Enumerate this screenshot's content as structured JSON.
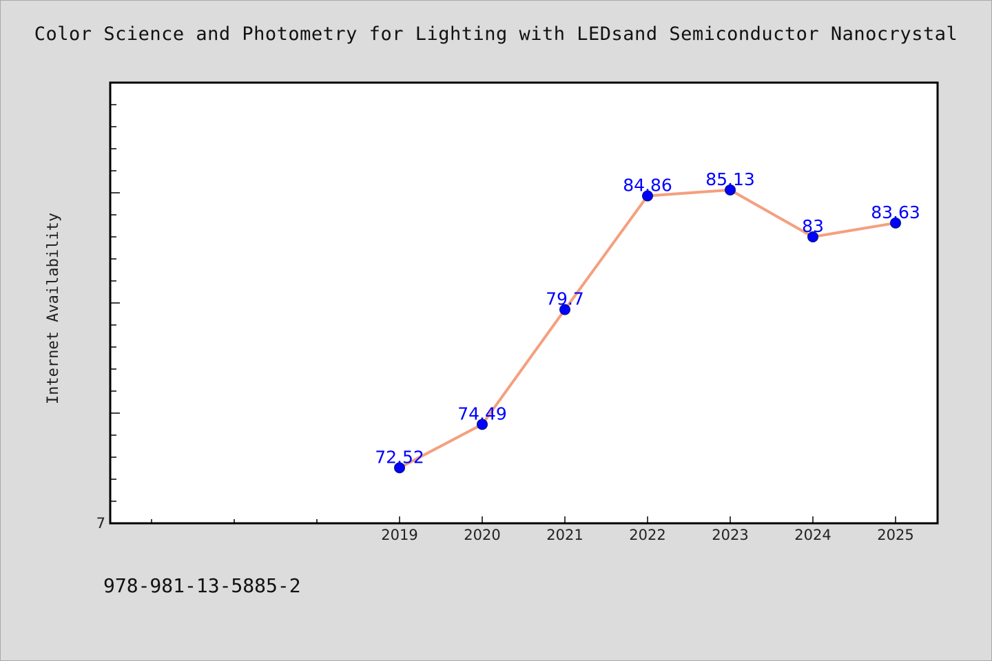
{
  "title": "Color Science and Photometry for Lighting with LEDsand Semiconductor Nanocrystal",
  "footer_text": "978-981-13-5885-2",
  "chart_data": {
    "type": "line",
    "categories": [
      "2019",
      "2020",
      "2021",
      "2022",
      "2023",
      "2024",
      "2025"
    ],
    "values": [
      72.52,
      74.49,
      79.7,
      84.86,
      85.13,
      83,
      83.63
    ],
    "data_labels": [
      "72.52",
      "74.49",
      "79.7",
      "84.86",
      "85.13",
      "83",
      "83.63"
    ],
    "ylabel": "Internet Availability",
    "xlabel": "",
    "y_tick_label": "7",
    "ylim": [
      70.0,
      90.0
    ],
    "x_slots": 10,
    "first_category_slot": 3,
    "grid": false,
    "colors": {
      "line": "#f4a07f",
      "marker": "#0000ff",
      "label": "#0000ff",
      "plot_bg": "#ffffff",
      "page_bg": "#dcdcdc"
    }
  }
}
